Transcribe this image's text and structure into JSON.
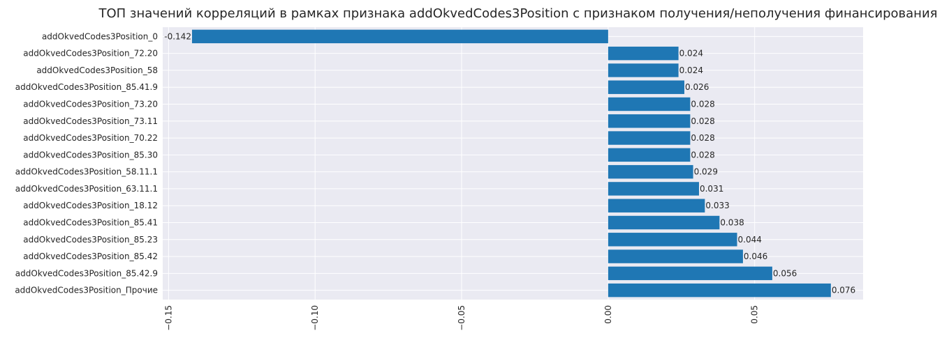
{
  "chart_data": {
    "type": "bar",
    "orientation": "horizontal",
    "title": "ТОП значений корреляций в рамках признака addOkvedCodes3Position с признаком получения/неполучения финансирования",
    "xlabel": "",
    "ylabel": "",
    "xlim": [
      -0.152,
      0.087
    ],
    "xticks": [
      -0.15,
      -0.1,
      -0.05,
      0.0,
      0.05
    ],
    "xtick_labels": [
      "−0.15",
      "−0.10",
      "−0.05",
      "0.00",
      "0.05"
    ],
    "grid": true,
    "bar_color": "#1f77b4",
    "background_color": "#eaeaf2",
    "categories": [
      "addOkvedCodes3Position_0",
      "addOkvedCodes3Position_72.20",
      "addOkvedCodes3Position_58",
      "addOkvedCodes3Position_85.41.9",
      "addOkvedCodes3Position_73.20",
      "addOkvedCodes3Position_73.11",
      "addOkvedCodes3Position_70.22",
      "addOkvedCodes3Position_85.30",
      "addOkvedCodes3Position_58.11.1",
      "addOkvedCodes3Position_63.11.1",
      "addOkvedCodes3Position_18.12",
      "addOkvedCodes3Position_85.41",
      "addOkvedCodes3Position_85.23",
      "addOkvedCodes3Position_85.42",
      "addOkvedCodes3Position_85.42.9",
      "addOkvedCodes3Position_Прочие"
    ],
    "values": [
      -0.142,
      0.024,
      0.024,
      0.026,
      0.028,
      0.028,
      0.028,
      0.028,
      0.029,
      0.031,
      0.033,
      0.038,
      0.044,
      0.046,
      0.056,
      0.076
    ],
    "labels": [
      "-0.142",
      "0.024",
      "0.024",
      "0.026",
      "0.028",
      "0.028",
      "0.028",
      "0.028",
      "0.029",
      "0.031",
      "0.033",
      "0.038",
      "0.044",
      "0.046",
      "0.056",
      "0.076"
    ]
  }
}
